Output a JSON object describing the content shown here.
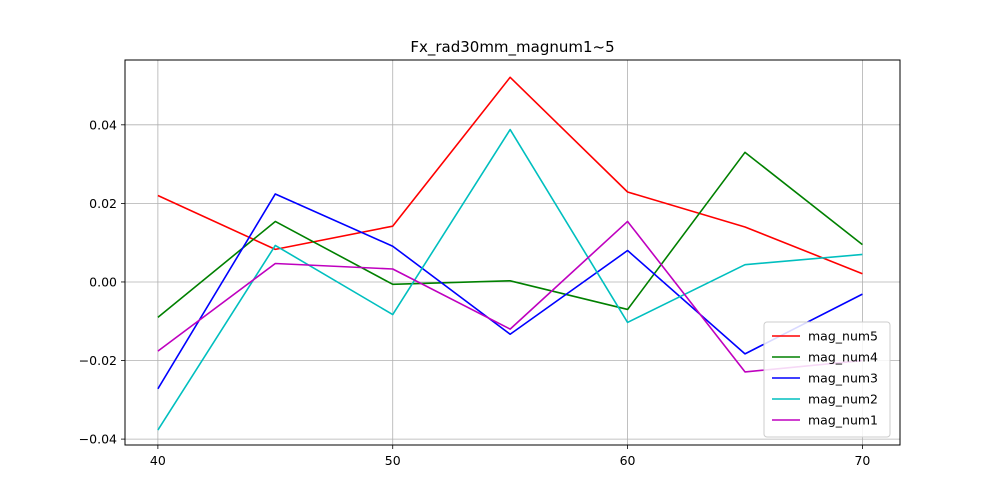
{
  "chart_data": {
    "type": "line",
    "title": "Fx_rad30mm_magnum1~5",
    "xlabel": "",
    "ylabel": "",
    "x": [
      40,
      45,
      50,
      55,
      60,
      65,
      70
    ],
    "xlim": [
      38.6,
      71.6
    ],
    "ylim": [
      -0.0415,
      0.0565
    ],
    "xticks": [
      40,
      50,
      60,
      70
    ],
    "yticks": [
      -0.04,
      -0.02,
      0.0,
      0.02,
      0.04
    ],
    "ytick_labels": [
      "−0.04",
      "−0.02",
      "0.00",
      "0.02",
      "0.04"
    ],
    "grid": true,
    "legend_position": "lower-right",
    "series": [
      {
        "name": "mag_num5",
        "color": "#ff0000",
        "values": [
          0.022,
          0.0083,
          0.0142,
          0.0521,
          0.0229,
          0.014,
          0.0021
        ]
      },
      {
        "name": "mag_num4",
        "color": "#008000",
        "values": [
          -0.009,
          0.0154,
          -0.0006,
          0.0003,
          -0.007,
          0.033,
          0.0095
        ]
      },
      {
        "name": "mag_num3",
        "color": "#0000ff",
        "values": [
          -0.0272,
          0.0224,
          0.0091,
          -0.0133,
          0.008,
          -0.0183,
          -0.0031
        ]
      },
      {
        "name": "mag_num2",
        "color": "#00bfbf",
        "values": [
          -0.0377,
          0.0093,
          -0.0083,
          0.0388,
          -0.0103,
          0.0044,
          0.007
        ]
      },
      {
        "name": "mag_num1",
        "color": "#bf00bf",
        "values": [
          -0.0176,
          0.0047,
          0.0033,
          -0.012,
          0.0154,
          -0.0229,
          -0.02
        ]
      }
    ]
  }
}
